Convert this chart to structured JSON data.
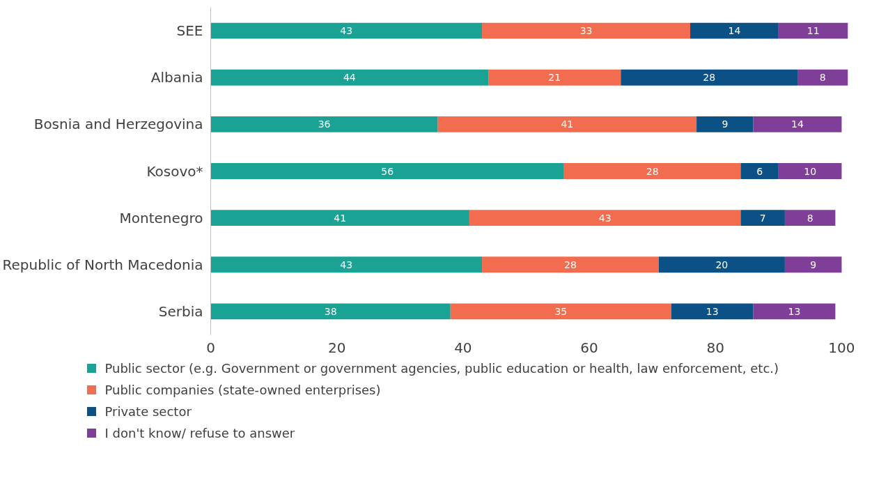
{
  "chart_data": {
    "type": "bar",
    "orientation": "horizontal",
    "stacked": true,
    "data_labels": true,
    "grid": false,
    "legend": "bottom",
    "categories": [
      "SEE",
      "Albania",
      "Bosnia and Herzegovina",
      "Kosovo*",
      "Montenegro",
      "Republic of North Macedonia",
      "Serbia"
    ],
    "xlim": [
      0,
      101
    ],
    "xticks": [
      0,
      20,
      40,
      60,
      80,
      100
    ],
    "series": [
      {
        "name": "Public sector (e.g. Government or government agencies, public education or health, law enforcement, etc.)",
        "color": "#1aa395",
        "values": [
          43,
          44,
          36,
          56,
          41,
          43,
          38
        ]
      },
      {
        "name": "Public companies (state-owned enterprises)",
        "color": "#f26d50",
        "values": [
          33,
          21,
          41,
          28,
          43,
          28,
          35
        ]
      },
      {
        "name": "Private sector",
        "color": "#0b5185",
        "values": [
          14,
          28,
          9,
          6,
          7,
          20,
          13
        ]
      },
      {
        "name": "I don't know/ refuse to answer",
        "color": "#7f3f98",
        "values": [
          11,
          8,
          14,
          10,
          8,
          9,
          13
        ]
      }
    ]
  }
}
